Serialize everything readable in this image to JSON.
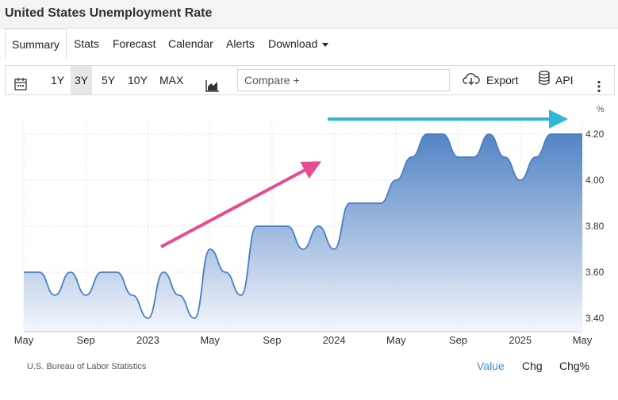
{
  "header": {
    "title": "United States Unemployment Rate"
  },
  "tabs": [
    {
      "label": "Summary",
      "active": true
    },
    {
      "label": "Stats"
    },
    {
      "label": "Forecast"
    },
    {
      "label": "Calendar"
    },
    {
      "label": "Alerts"
    },
    {
      "label": "Download",
      "dropdown": true
    }
  ],
  "toolbar": {
    "calendar_icon": "calendar-icon",
    "ranges": [
      "1Y",
      "3Y",
      "5Y",
      "10Y",
      "MAX"
    ],
    "active_range": "3Y",
    "chart_type_icon": "area-chart-icon",
    "compare_placeholder": "Compare +",
    "export_label": "Export",
    "export_icon": "cloud-download-icon",
    "api_label": "API",
    "api_icon": "database-icon",
    "more_icon": "vertical-ellipsis-icon"
  },
  "chart_data": {
    "type": "area",
    "unit": "%",
    "x": [
      "2022-05",
      "2022-06",
      "2022-07",
      "2022-08",
      "2022-09",
      "2022-10",
      "2022-11",
      "2022-12",
      "2023-01",
      "2023-02",
      "2023-03",
      "2023-04",
      "2023-05",
      "2023-06",
      "2023-07",
      "2023-08",
      "2023-09",
      "2023-10",
      "2023-11",
      "2023-12",
      "2024-01",
      "2024-02",
      "2024-03",
      "2024-04",
      "2024-05",
      "2024-06",
      "2024-07",
      "2024-08",
      "2024-09",
      "2024-10",
      "2024-11",
      "2024-12",
      "2025-01",
      "2025-02",
      "2025-03",
      "2025-04",
      "2025-05"
    ],
    "values": [
      3.6,
      3.6,
      3.5,
      3.6,
      3.5,
      3.6,
      3.6,
      3.5,
      3.4,
      3.6,
      3.5,
      3.4,
      3.7,
      3.6,
      3.5,
      3.8,
      3.8,
      3.8,
      3.7,
      3.8,
      3.7,
      3.9,
      3.9,
      3.9,
      4.0,
      4.1,
      4.2,
      4.2,
      4.1,
      4.1,
      4.2,
      4.1,
      4.0,
      4.1,
      4.2,
      4.2,
      4.2
    ],
    "x_tick_labels": [
      "May",
      "Sep",
      "2023",
      "May",
      "Sep",
      "2024",
      "May",
      "Sep",
      "2025",
      "May"
    ],
    "y_tick_labels": [
      "3.40",
      "3.60",
      "3.80",
      "4.00",
      "4.20"
    ],
    "ylim": [
      3.35,
      4.25
    ],
    "grid": true,
    "annotations": [
      "pink-upward-arrow",
      "cyan-horizontal-arrow"
    ],
    "colors": {
      "line": "#4a7ec2",
      "fill_top": "#4a7ec2",
      "fill_bottom": "#f4f7fc",
      "pink_arrow": "#ea4a8f",
      "cyan_arrow": "#2db8d8"
    }
  },
  "footer": {
    "source": "U.S. Bureau of Labor Statistics",
    "views": [
      "Value",
      "Chg",
      "Chg%"
    ],
    "active_view": "Value"
  }
}
